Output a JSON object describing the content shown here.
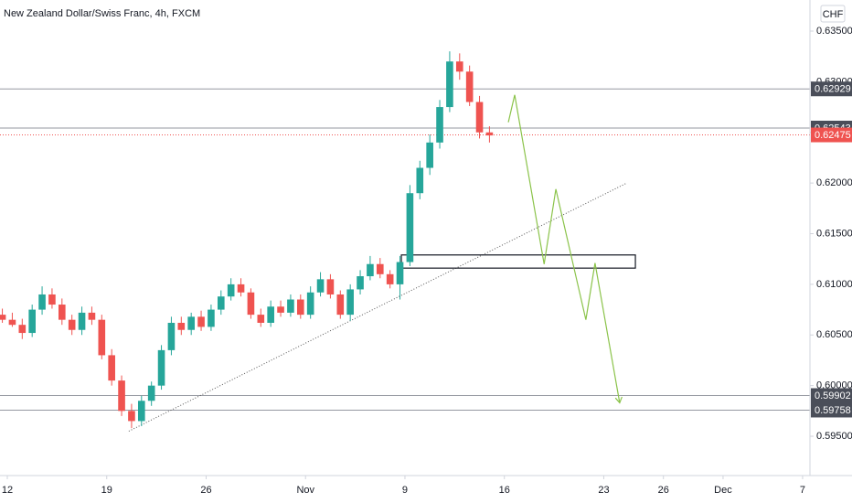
{
  "chart_data": {
    "type": "candlestick",
    "title": "New Zealand Dollar/Swiss Franc, 4h, FXCM",
    "currency": "CHF",
    "up_color": "#26a69a",
    "down_color": "#ef5350",
    "x": [
      -0.25,
      0.25,
      0.75,
      1.25,
      1.75,
      2.25,
      2.75,
      3.25,
      3.75,
      4.25,
      4.75,
      5.25,
      5.75,
      6.25,
      6.75,
      7.25,
      7.75,
      8.25,
      8.75,
      9.25,
      9.75,
      10.25,
      10.75,
      11.25,
      11.75,
      12.25,
      12.75,
      13.25,
      13.75,
      14.25,
      14.75,
      15.25,
      15.75,
      16.25,
      16.75,
      17.25,
      17.75,
      18.25,
      18.75,
      19.25,
      19.75,
      20.25,
      20.75,
      21.25,
      21.75,
      22.25,
      22.75,
      23.25,
      23.75,
      24.25
    ],
    "open": [
      0.607,
      0.6065,
      0.606,
      0.6052,
      0.6075,
      0.609,
      0.608,
      0.6065,
      0.6055,
      0.6072,
      0.6065,
      0.603,
      0.6005,
      0.5975,
      0.5965,
      0.5985,
      0.6,
      0.6035,
      0.6062,
      0.6055,
      0.6068,
      0.6058,
      0.6075,
      0.6088,
      0.61,
      0.6092,
      0.607,
      0.6062,
      0.6078,
      0.6072,
      0.6085,
      0.607,
      0.6092,
      0.6105,
      0.609,
      0.607,
      0.6095,
      0.6108,
      0.612,
      0.611,
      0.61,
      0.6122,
      0.619,
      0.6215,
      0.624,
      0.6275,
      0.632,
      0.631,
      0.628,
      0.625
    ],
    "high": [
      0.6076,
      0.6072,
      0.6066,
      0.608,
      0.6098,
      0.6096,
      0.6086,
      0.607,
      0.6078,
      0.6078,
      0.607,
      0.6036,
      0.601,
      0.5982,
      0.599,
      0.6004,
      0.604,
      0.6068,
      0.6068,
      0.6072,
      0.6074,
      0.608,
      0.6094,
      0.6106,
      0.6106,
      0.6096,
      0.6076,
      0.6084,
      0.6084,
      0.609,
      0.609,
      0.6098,
      0.6112,
      0.611,
      0.6094,
      0.61,
      0.6114,
      0.6128,
      0.6126,
      0.6114,
      0.6128,
      0.6198,
      0.6222,
      0.6248,
      0.6282,
      0.633,
      0.6328,
      0.6316,
      0.6286,
      0.6256
    ],
    "low": [
      0.6062,
      0.6058,
      0.6046,
      0.6048,
      0.607,
      0.6076,
      0.606,
      0.605,
      0.605,
      0.606,
      0.6026,
      0.6,
      0.597,
      0.5958,
      0.596,
      0.598,
      0.5996,
      0.603,
      0.605,
      0.605,
      0.6054,
      0.6054,
      0.607,
      0.6084,
      0.6088,
      0.6066,
      0.6058,
      0.6058,
      0.6068,
      0.6068,
      0.6066,
      0.6066,
      0.6088,
      0.6086,
      0.6066,
      0.6064,
      0.609,
      0.6104,
      0.6106,
      0.6096,
      0.6085,
      0.6118,
      0.6184,
      0.6208,
      0.6234,
      0.627,
      0.6302,
      0.6276,
      0.6244,
      0.624
    ],
    "close": [
      0.6065,
      0.606,
      0.6052,
      0.6075,
      0.609,
      0.608,
      0.6065,
      0.6055,
      0.6072,
      0.6065,
      0.603,
      0.6005,
      0.5975,
      0.5965,
      0.5985,
      0.6,
      0.6035,
      0.6062,
      0.6055,
      0.6068,
      0.6058,
      0.6075,
      0.6088,
      0.61,
      0.6092,
      0.607,
      0.6062,
      0.6078,
      0.6072,
      0.6085,
      0.607,
      0.6092,
      0.6105,
      0.609,
      0.607,
      0.6095,
      0.6108,
      0.612,
      0.611,
      0.61,
      0.6122,
      0.619,
      0.6215,
      0.624,
      0.6275,
      0.632,
      0.631,
      0.628,
      0.625,
      0.6247
    ],
    "xlim": [
      -0.3678,
      40.37
    ],
    "xticks": [
      {
        "value": 0,
        "label": "12"
      },
      {
        "value": 5,
        "label": "19"
      },
      {
        "value": 10,
        "label": "26"
      },
      {
        "value": 15,
        "label": "Nov"
      },
      {
        "value": 20,
        "label": "9"
      },
      {
        "value": 25,
        "label": "16"
      },
      {
        "value": 30,
        "label": "23"
      },
      {
        "value": 33,
        "label": "26"
      },
      {
        "value": 36,
        "label": "Dec"
      },
      {
        "value": 40,
        "label": "7"
      }
    ],
    "ylim": [
      0.59112,
      0.63807
    ],
    "yticks": [
      {
        "value": 0.635,
        "label": "0.63500"
      },
      {
        "value": 0.63,
        "label": "0.63000"
      },
      {
        "value": 0.625,
        "label": "0.62500"
      },
      {
        "value": 0.62,
        "label": "0.62000"
      },
      {
        "value": 0.615,
        "label": "0.61500"
      },
      {
        "value": 0.61,
        "label": "0.61000"
      },
      {
        "value": 0.605,
        "label": "0.60500"
      },
      {
        "value": 0.6,
        "label": "0.60000"
      },
      {
        "value": 0.595,
        "label": "0.59500"
      }
    ],
    "levels": [
      0.62929,
      0.62543,
      0.59902,
      0.59758
    ],
    "level_color": "#9598a1",
    "last_price": 0.62475,
    "last_price_color": "#ef5350",
    "trendline": {
      "x": [
        6.11,
        31.17
      ],
      "y": [
        0.5955,
        0.62001
      ]
    },
    "zone": {
      "x": [
        19.82,
        31.59
      ],
      "y": [
        0.6129,
        0.6116
      ]
    },
    "projection": {
      "color": "#8bc34a",
      "x": [
        25.2,
        25.52,
        27.0,
        27.59,
        29.1,
        29.56,
        30.8
      ],
      "y": [
        0.626,
        0.6287,
        0.612,
        0.6194,
        0.6065,
        0.6121,
        0.5983
      ]
    }
  }
}
